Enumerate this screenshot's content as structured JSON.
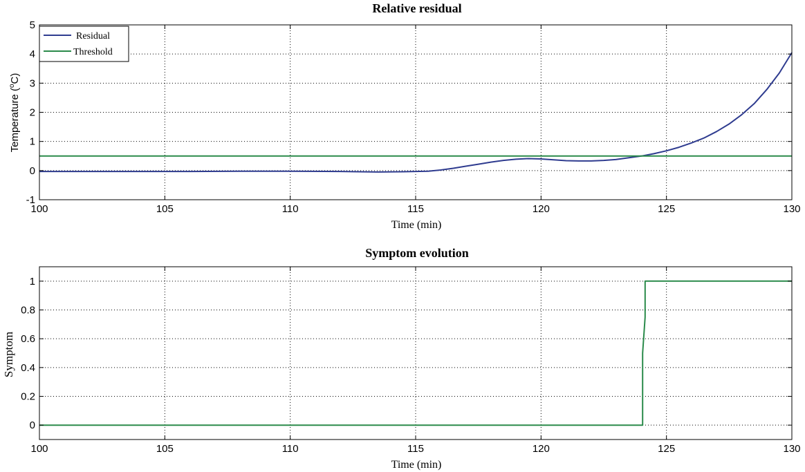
{
  "chart_data": [
    {
      "type": "line",
      "title": "Relative residual",
      "xlabel": "Time (min)",
      "ylabel_base": "Temperature (",
      "ylabel_sup": "o",
      "ylabel_end": "C)",
      "xlim": [
        100,
        130
      ],
      "ylim": [
        -1,
        5
      ],
      "xticks": [
        100,
        105,
        110,
        115,
        120,
        125,
        130
      ],
      "yticks": [
        -1,
        0,
        1,
        2,
        3,
        4,
        5
      ],
      "grid": true,
      "legend_position": "top-left",
      "series": [
        {
          "name": "Residual",
          "color": "#2e3b8f",
          "x": [
            100,
            102,
            104,
            106,
            108,
            110,
            112,
            113.5,
            114.5,
            115.5,
            116,
            116.5,
            117,
            117.5,
            118,
            118.5,
            119,
            119.5,
            120,
            120.5,
            121,
            121.5,
            122,
            122.5,
            123,
            123.5,
            124,
            124.5,
            125,
            125.5,
            126,
            126.5,
            127,
            127.5,
            128,
            128.5,
            129,
            129.5,
            130
          ],
          "y": [
            -0.03,
            -0.03,
            -0.03,
            -0.03,
            -0.02,
            -0.02,
            -0.03,
            -0.05,
            -0.04,
            -0.02,
            0.02,
            0.08,
            0.15,
            0.22,
            0.29,
            0.35,
            0.39,
            0.41,
            0.4,
            0.37,
            0.34,
            0.33,
            0.33,
            0.35,
            0.38,
            0.44,
            0.5,
            0.58,
            0.68,
            0.8,
            0.95,
            1.12,
            1.34,
            1.6,
            1.92,
            2.3,
            2.78,
            3.35,
            4.05
          ]
        },
        {
          "name": "Threshold",
          "color": "#2a8a4a",
          "x": [
            100,
            130
          ],
          "y": [
            0.5,
            0.5
          ]
        }
      ]
    },
    {
      "type": "line",
      "title": "Symptom evolution",
      "xlabel": "Time (min)",
      "ylabel": "Symptom",
      "xlim": [
        100,
        130
      ],
      "ylim": [
        -0.1,
        1.1
      ],
      "xticks": [
        100,
        105,
        110,
        115,
        120,
        125,
        130
      ],
      "yticks": [
        0,
        0.2,
        0.4,
        0.6,
        0.8,
        1
      ],
      "ytick_labels": [
        "0",
        "0.2",
        "0.4",
        "0.6",
        "0.8",
        "1"
      ],
      "grid": true,
      "series": [
        {
          "color": "#2a8a4a",
          "x": [
            100,
            124.05,
            124.05,
            124.15,
            124.15,
            130
          ],
          "y": [
            0,
            0,
            0.5,
            0.75,
            1,
            1
          ]
        }
      ]
    }
  ]
}
